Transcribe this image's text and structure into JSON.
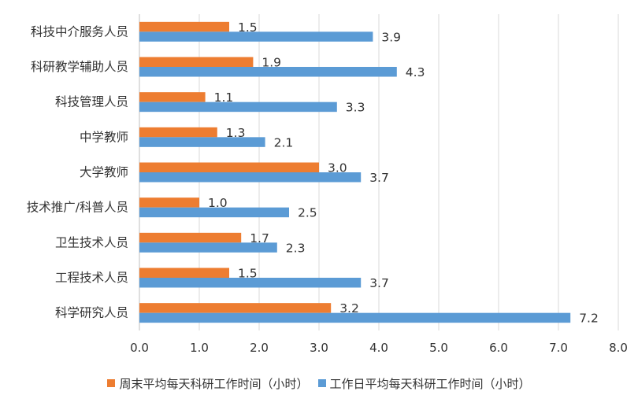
{
  "chart_data": {
    "type": "bar",
    "orientation": "horizontal",
    "categories": [
      "科技中介服务人员",
      "科研教学辅助人员",
      "科技管理人员",
      "中学教师",
      "大学教师",
      "技术推广/科普人员",
      "卫生技术人员",
      "工程技术人员",
      "科学研究人员"
    ],
    "series": [
      {
        "name": "周末平均每天科研工作时间（小时）",
        "values": [
          1.5,
          1.9,
          1.1,
          1.3,
          3.0,
          1.0,
          1.7,
          1.5,
          3.2
        ],
        "color": "#ED7D31"
      },
      {
        "name": "工作日平均每天科研工作时间（小时）",
        "values": [
          3.9,
          4.3,
          3.3,
          2.1,
          3.7,
          2.5,
          2.3,
          3.7,
          7.2
        ],
        "color": "#5B9BD5"
      }
    ],
    "xlim": [
      0,
      8
    ],
    "xticks": [
      "0.0",
      "1.0",
      "2.0",
      "3.0",
      "4.0",
      "5.0",
      "6.0",
      "7.0",
      "8.0"
    ],
    "grid": true,
    "legend_position": "bottom"
  }
}
